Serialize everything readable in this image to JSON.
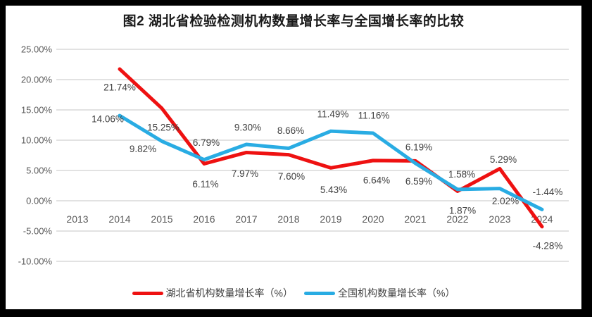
{
  "title": "图2 湖北省检验检测机构数量增长率与全国增长率的比较",
  "chart_data": {
    "type": "line",
    "title": "图2 湖北省检验检测机构数量增长率与全国增长率的比较",
    "categories": [
      2013,
      2014,
      2015,
      2016,
      2017,
      2018,
      2019,
      2020,
      2021,
      2022,
      2023,
      2024
    ],
    "xlabel": "",
    "ylabel": "",
    "ylim": [
      -10,
      25
    ],
    "grid": true,
    "legend_position": "bottom",
    "y_ticks": [
      "25.00%",
      "20.00%",
      "15.00%",
      "10.00%",
      "5.00%",
      "0.00%",
      "-5.00%",
      "-10.00%"
    ],
    "y_tick_values": [
      25,
      20,
      15,
      10,
      5,
      0,
      -5,
      -10
    ],
    "series": [
      {
        "name": "湖北省机构数量增长率（%）",
        "color": "#ee1111",
        "x": [
          2014,
          2015,
          2016,
          2017,
          2018,
          2019,
          2020,
          2021,
          2022,
          2023,
          2024
        ],
        "values": [
          21.74,
          15.25,
          6.11,
          7.97,
          7.6,
          5.43,
          6.64,
          6.59,
          1.58,
          5.29,
          -4.28
        ],
        "labels": [
          "21.74%",
          "15.25%",
          "6.11%",
          "7.97%",
          "7.60%",
          "5.43%",
          "6.64%",
          "6.59%",
          "1.58%",
          "5.29%",
          "-4.28%"
        ],
        "label_offsets": [
          [
            0,
            26
          ],
          [
            2,
            27
          ],
          [
            2,
            29
          ],
          [
            -2,
            30
          ],
          [
            4,
            31
          ],
          [
            4,
            31
          ],
          [
            5,
            28
          ],
          [
            5,
            29
          ],
          [
            6,
            -24
          ],
          [
            5,
            -13
          ],
          [
            8,
            27
          ]
        ]
      },
      {
        "name": "全国机构数量增长率（%）",
        "color": "#29ace3",
        "x": [
          2014,
          2015,
          2016,
          2017,
          2018,
          2019,
          2020,
          2021,
          2022,
          2023,
          2024
        ],
        "values": [
          14.06,
          9.82,
          6.79,
          9.3,
          8.66,
          11.49,
          11.16,
          6.19,
          1.87,
          2.02,
          -1.44
        ],
        "labels": [
          "14.06%",
          "9.82%",
          "6.79%",
          "9.30%",
          "8.66%",
          "11.49%",
          "11.16%",
          "6.19%",
          "1.87%",
          "2.02%",
          "-1.44%"
        ],
        "label_offsets": [
          [
            -17,
            5
          ],
          [
            -27,
            11
          ],
          [
            3,
            -24
          ],
          [
            2,
            -24
          ],
          [
            3,
            -25
          ],
          [
            3,
            -24
          ],
          [
            1,
            -25
          ],
          [
            5,
            -23
          ],
          [
            7,
            30
          ],
          [
            8,
            18
          ],
          [
            8,
            -25
          ]
        ]
      }
    ],
    "colors": {
      "gridline": "#d9d9d9",
      "axis_text": "#595959",
      "data_label_text": "#404040"
    }
  }
}
